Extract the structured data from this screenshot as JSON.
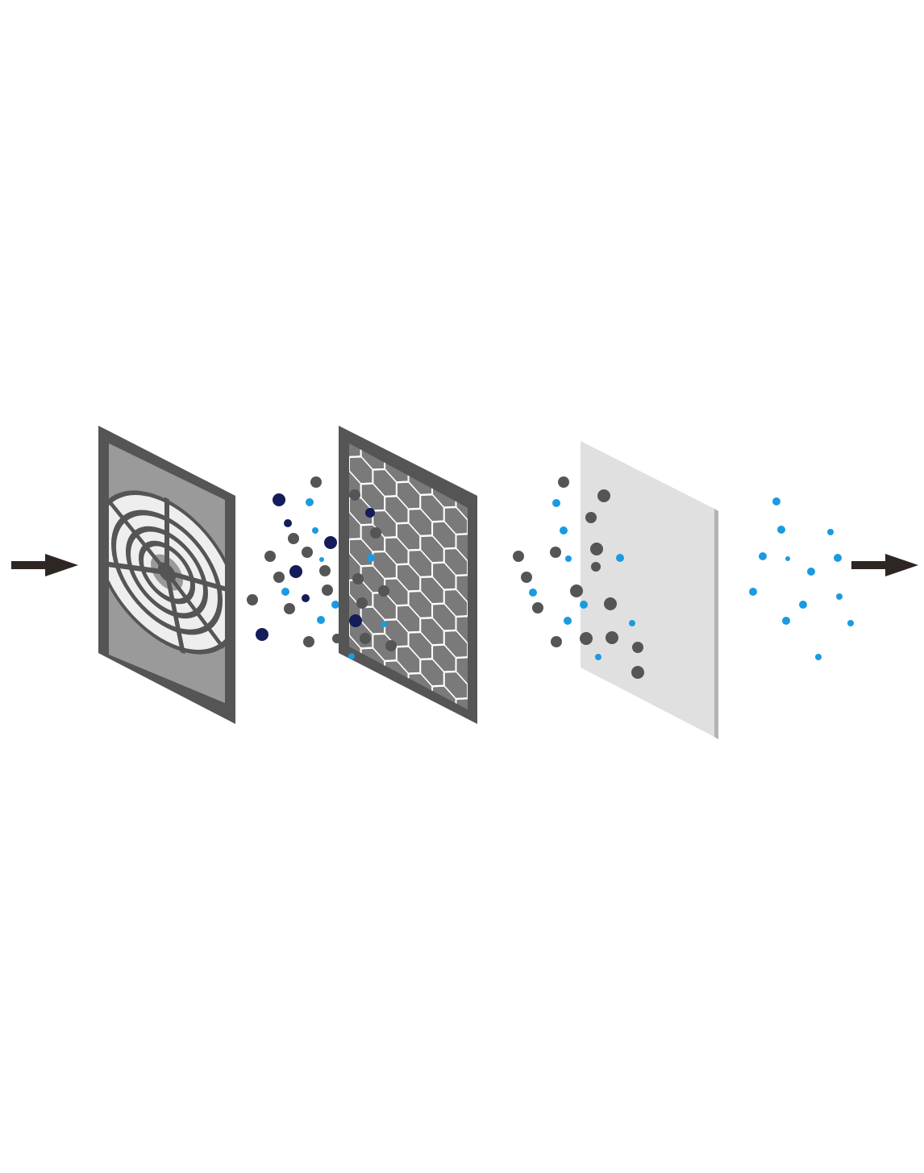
{
  "diagram": {
    "description_label": "air-filtration-layers",
    "colors": {
      "arrow": "#2e2622",
      "frame_dark": "#555555",
      "grille_light": "#eeeeee",
      "grille_mid": "#9a9a9a",
      "hex_fill": "#7a7a7a",
      "hex_line": "#ffffff",
      "hepa_sheet": "#e0e0e0",
      "hepa_edge": "#b3b3b3",
      "particle_gray": "#555555",
      "particle_navy": "#141c5a",
      "particle_cyan": "#1a9be0"
    },
    "stages": [
      {
        "name": "inlet-arrow-icon"
      },
      {
        "name": "pre-filter-grille"
      },
      {
        "name": "honeycomb-carbon-filter"
      },
      {
        "name": "hepa-filter-sheet"
      },
      {
        "name": "outlet-arrow-icon"
      }
    ],
    "particle_groups": [
      {
        "name": "particles-between-prefilter-and-carbon",
        "mix": [
          "gray",
          "navy",
          "cyan"
        ]
      },
      {
        "name": "particles-between-carbon-and-hepa",
        "mix": [
          "gray",
          "cyan"
        ]
      },
      {
        "name": "particles-after-hepa",
        "mix": [
          "cyan"
        ]
      }
    ]
  }
}
